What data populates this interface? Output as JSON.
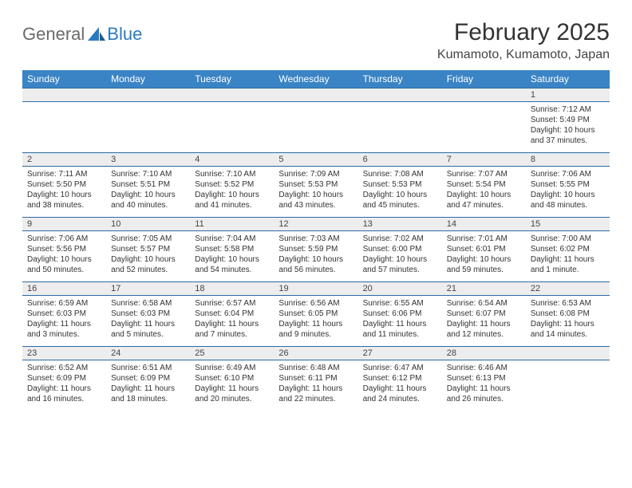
{
  "logo": {
    "text_general": "General",
    "text_blue": "Blue"
  },
  "title": "February 2025",
  "location": "Kumamoto, Kumamoto, Japan",
  "colors": {
    "header_bg": "#3a84c5",
    "header_text": "#ffffff",
    "daynum_bg": "#ededed",
    "border": "#2a6aa5",
    "logo_blue": "#2a7ac0",
    "logo_gray": "#6a6a6a",
    "body_text": "#333333"
  },
  "day_names": [
    "Sunday",
    "Monday",
    "Tuesday",
    "Wednesday",
    "Thursday",
    "Friday",
    "Saturday"
  ],
  "weeks": [
    [
      null,
      null,
      null,
      null,
      null,
      null,
      {
        "n": "1",
        "sr": "7:12 AM",
        "ss": "5:49 PM",
        "dl": "10 hours and 37 minutes."
      }
    ],
    [
      {
        "n": "2",
        "sr": "7:11 AM",
        "ss": "5:50 PM",
        "dl": "10 hours and 38 minutes."
      },
      {
        "n": "3",
        "sr": "7:10 AM",
        "ss": "5:51 PM",
        "dl": "10 hours and 40 minutes."
      },
      {
        "n": "4",
        "sr": "7:10 AM",
        "ss": "5:52 PM",
        "dl": "10 hours and 41 minutes."
      },
      {
        "n": "5",
        "sr": "7:09 AM",
        "ss": "5:53 PM",
        "dl": "10 hours and 43 minutes."
      },
      {
        "n": "6",
        "sr": "7:08 AM",
        "ss": "5:53 PM",
        "dl": "10 hours and 45 minutes."
      },
      {
        "n": "7",
        "sr": "7:07 AM",
        "ss": "5:54 PM",
        "dl": "10 hours and 47 minutes."
      },
      {
        "n": "8",
        "sr": "7:06 AM",
        "ss": "5:55 PM",
        "dl": "10 hours and 48 minutes."
      }
    ],
    [
      {
        "n": "9",
        "sr": "7:06 AM",
        "ss": "5:56 PM",
        "dl": "10 hours and 50 minutes."
      },
      {
        "n": "10",
        "sr": "7:05 AM",
        "ss": "5:57 PM",
        "dl": "10 hours and 52 minutes."
      },
      {
        "n": "11",
        "sr": "7:04 AM",
        "ss": "5:58 PM",
        "dl": "10 hours and 54 minutes."
      },
      {
        "n": "12",
        "sr": "7:03 AM",
        "ss": "5:59 PM",
        "dl": "10 hours and 56 minutes."
      },
      {
        "n": "13",
        "sr": "7:02 AM",
        "ss": "6:00 PM",
        "dl": "10 hours and 57 minutes."
      },
      {
        "n": "14",
        "sr": "7:01 AM",
        "ss": "6:01 PM",
        "dl": "10 hours and 59 minutes."
      },
      {
        "n": "15",
        "sr": "7:00 AM",
        "ss": "6:02 PM",
        "dl": "11 hours and 1 minute."
      }
    ],
    [
      {
        "n": "16",
        "sr": "6:59 AM",
        "ss": "6:03 PM",
        "dl": "11 hours and 3 minutes."
      },
      {
        "n": "17",
        "sr": "6:58 AM",
        "ss": "6:03 PM",
        "dl": "11 hours and 5 minutes."
      },
      {
        "n": "18",
        "sr": "6:57 AM",
        "ss": "6:04 PM",
        "dl": "11 hours and 7 minutes."
      },
      {
        "n": "19",
        "sr": "6:56 AM",
        "ss": "6:05 PM",
        "dl": "11 hours and 9 minutes."
      },
      {
        "n": "20",
        "sr": "6:55 AM",
        "ss": "6:06 PM",
        "dl": "11 hours and 11 minutes."
      },
      {
        "n": "21",
        "sr": "6:54 AM",
        "ss": "6:07 PM",
        "dl": "11 hours and 12 minutes."
      },
      {
        "n": "22",
        "sr": "6:53 AM",
        "ss": "6:08 PM",
        "dl": "11 hours and 14 minutes."
      }
    ],
    [
      {
        "n": "23",
        "sr": "6:52 AM",
        "ss": "6:09 PM",
        "dl": "11 hours and 16 minutes."
      },
      {
        "n": "24",
        "sr": "6:51 AM",
        "ss": "6:09 PM",
        "dl": "11 hours and 18 minutes."
      },
      {
        "n": "25",
        "sr": "6:49 AM",
        "ss": "6:10 PM",
        "dl": "11 hours and 20 minutes."
      },
      {
        "n": "26",
        "sr": "6:48 AM",
        "ss": "6:11 PM",
        "dl": "11 hours and 22 minutes."
      },
      {
        "n": "27",
        "sr": "6:47 AM",
        "ss": "6:12 PM",
        "dl": "11 hours and 24 minutes."
      },
      {
        "n": "28",
        "sr": "6:46 AM",
        "ss": "6:13 PM",
        "dl": "11 hours and 26 minutes."
      },
      null
    ]
  ],
  "labels": {
    "sunrise": "Sunrise:",
    "sunset": "Sunset:",
    "daylight": "Daylight:"
  }
}
